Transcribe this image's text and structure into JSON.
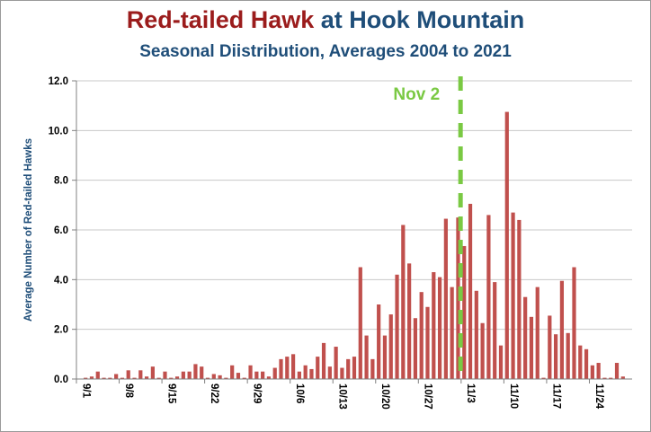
{
  "chart_data": {
    "type": "bar",
    "title_part1": "Red-tailed Hawk",
    "title_part2": " at Hook Mountain",
    "subtitle": "Seasonal Diistribution, Averages 2004 to 2021",
    "ylabel": "Average Number of Red-tailed Hawks",
    "xlabel": "",
    "ylim": [
      0,
      12
    ],
    "yticks": [
      "0.0",
      "2.0",
      "4.0",
      "6.0",
      "8.0",
      "10.0",
      "12.0"
    ],
    "grid": true,
    "legend": "none",
    "bar_color": "#c0504d",
    "title_color_1": "#9b1c1c",
    "title_color_2": "#1f4e79",
    "axis_title_color": "#1f4e79",
    "annotation": {
      "label": "Nov 2",
      "category": "11/2",
      "color": "#7ac943"
    },
    "categories": [
      "9/1",
      "9/2",
      "9/3",
      "9/4",
      "9/5",
      "9/6",
      "9/7",
      "9/8",
      "9/9",
      "9/10",
      "9/11",
      "9/12",
      "9/13",
      "9/14",
      "9/15",
      "9/16",
      "9/17",
      "9/18",
      "9/19",
      "9/20",
      "9/21",
      "9/22",
      "9/23",
      "9/24",
      "9/25",
      "9/26",
      "9/27",
      "9/28",
      "9/29",
      "9/30",
      "10/1",
      "10/2",
      "10/3",
      "10/4",
      "10/5",
      "10/6",
      "10/7",
      "10/8",
      "10/9",
      "10/10",
      "10/11",
      "10/12",
      "10/13",
      "10/14",
      "10/15",
      "10/16",
      "10/17",
      "10/18",
      "10/19",
      "10/20",
      "10/21",
      "10/22",
      "10/23",
      "10/24",
      "10/25",
      "10/26",
      "10/27",
      "10/28",
      "10/29",
      "10/30",
      "10/31",
      "11/1",
      "11/2",
      "11/3",
      "11/4",
      "11/5",
      "11/6",
      "11/7",
      "11/8",
      "11/9",
      "11/10",
      "11/11",
      "11/12",
      "11/13",
      "11/14",
      "11/15",
      "11/16",
      "11/17",
      "11/18",
      "11/19",
      "11/20",
      "11/21",
      "11/22",
      "11/23",
      "11/24",
      "11/25",
      "11/26",
      "11/27",
      "11/28",
      "11/29",
      "11/30"
    ],
    "tick_labels": [
      "9/1",
      "9/8",
      "9/15",
      "9/22",
      "9/29",
      "10/6",
      "10/13",
      "10/20",
      "10/27",
      "11/3",
      "11/10",
      "11/17",
      "11/24"
    ],
    "values": [
      0.0,
      0.05,
      0.1,
      0.3,
      0.05,
      0.05,
      0.2,
      0.05,
      0.35,
      0.05,
      0.35,
      0.1,
      0.5,
      0.05,
      0.3,
      0.05,
      0.1,
      0.3,
      0.3,
      0.6,
      0.5,
      0.05,
      0.2,
      0.15,
      0.05,
      0.55,
      0.25,
      0.05,
      0.55,
      0.3,
      0.3,
      0.1,
      0.45,
      0.8,
      0.9,
      1.0,
      0.3,
      0.55,
      0.4,
      0.9,
      1.45,
      0.5,
      1.3,
      0.45,
      0.8,
      0.9,
      4.5,
      1.75,
      0.8,
      3.0,
      1.75,
      2.6,
      4.2,
      6.2,
      4.65,
      2.45,
      3.5,
      2.9,
      4.3,
      4.1,
      6.45,
      3.7,
      6.5,
      5.35,
      7.05,
      3.55,
      2.25,
      6.6,
      3.9,
      1.35,
      10.75,
      6.7,
      6.4,
      3.3,
      2.5,
      3.7,
      0.05,
      2.55,
      1.8,
      3.95,
      1.85,
      4.5,
      1.35,
      1.2,
      0.55,
      0.65,
      0.05,
      0.05,
      0.65,
      0.1,
      0.0
    ]
  }
}
